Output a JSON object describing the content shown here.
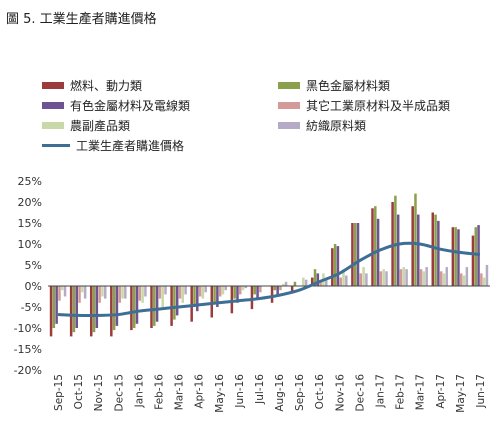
{
  "figure_title": "圖 5.  工業生產者購進價格",
  "chart_data": {
    "type": "bar",
    "categories": [
      "Sep-15",
      "Oct-15",
      "Nov-15",
      "Dec-15",
      "Jan-16",
      "Feb-16",
      "Mar-16",
      "Apr-16",
      "May-16",
      "Jun-16",
      "Jul-16",
      "Aug-16",
      "Sep-16",
      "Oct-16",
      "Nov-16",
      "Dec-16",
      "Jan-17",
      "Feb-17",
      "Mar-17",
      "Apr-17",
      "May-17",
      "Jun-17"
    ],
    "x_tick_labels": [
      "Sep-15",
      "Oct-15",
      "Nov-15",
      "Dec-15",
      "Jan-16",
      "Feb-16",
      "Mar-16",
      "Apr-16",
      "May-16",
      "Jun-16",
      "Jul-16",
      "Aug-16",
      "Sep-16",
      "Oct-16",
      "Nov-16",
      "Dec-16",
      "Jan-17",
      "Feb-17",
      "Mar-17",
      "Apr-17",
      "May-17",
      "Jun-17"
    ],
    "y_tick_labels": [
      "25%",
      "20%",
      "15%",
      "10%",
      "5%",
      "0%",
      "-5%",
      "-10%",
      "-15%",
      "-20%"
    ],
    "ylim": [
      -20,
      25
    ],
    "yticks": [
      25,
      20,
      15,
      10,
      5,
      0,
      -5,
      -10,
      -15,
      -20
    ],
    "grid": false,
    "legend_position": "top",
    "series": [
      {
        "name": "燃料、動力類",
        "color": "#9b3b3b",
        "values": [
          -12,
          -12,
          -12,
          -12,
          -10.5,
          -10,
          -9.5,
          -8.5,
          -7.5,
          -6.5,
          -5.5,
          -4,
          -1.5,
          2,
          9,
          15,
          18.5,
          20,
          19,
          17.5,
          14,
          12
        ]
      },
      {
        "name": "黑色金屬材料類",
        "color": "#8aa04a",
        "values": [
          -10,
          -11,
          -11,
          -10.5,
          -10,
          -9.5,
          -8,
          -5,
          -4,
          -3,
          -2,
          -1,
          1,
          4,
          10,
          15,
          19,
          21.5,
          22,
          17,
          14,
          14
        ]
      },
      {
        "name": "有色金屬材料及電線類",
        "color": "#6e5392",
        "values": [
          -9,
          -10,
          -10,
          -9.5,
          -9,
          -8.5,
          -7,
          -6,
          -5,
          -4,
          -3,
          -2,
          0,
          3,
          9.5,
          15,
          16,
          17,
          17,
          15.5,
          13.5,
          14.5
        ]
      },
      {
        "name": "其它工業原材料及半成品類",
        "color": "#d49a98",
        "values": [
          -3.5,
          -4,
          -4,
          -4,
          -3.5,
          -3,
          -3,
          -2.5,
          -2.5,
          -2,
          -1.5,
          -1,
          0,
          1,
          2,
          3,
          3.5,
          4,
          4,
          3.5,
          3,
          3
        ]
      },
      {
        "name": "農副產品類",
        "color": "#c9d8a8",
        "values": [
          -1,
          -1.5,
          -2.5,
          -3,
          -4,
          -5,
          -4,
          -3,
          -2,
          -1,
          0,
          0.5,
          2,
          3,
          4,
          4.5,
          4,
          4.5,
          3.5,
          3,
          2.5,
          2
        ]
      },
      {
        "name": "紡織原料類",
        "color": "#b5abc6",
        "values": [
          -2.5,
          -3,
          -3,
          -3,
          -2.5,
          -2,
          -2,
          -1.5,
          -1,
          -0.5,
          0,
          1,
          1.5,
          2,
          2.5,
          3,
          3.5,
          4,
          4.5,
          4.5,
          4.5,
          5
        ]
      }
    ],
    "line_series": {
      "name": "工業生產者購進價格",
      "color": "#3d6e94",
      "values": [
        -6.8,
        -7,
        -7,
        -6.8,
        -6,
        -5.5,
        -5,
        -4.5,
        -4,
        -3.5,
        -3,
        -2.2,
        -1,
        1,
        3,
        6,
        8.5,
        10,
        10,
        8.8,
        8,
        7.5
      ]
    }
  }
}
